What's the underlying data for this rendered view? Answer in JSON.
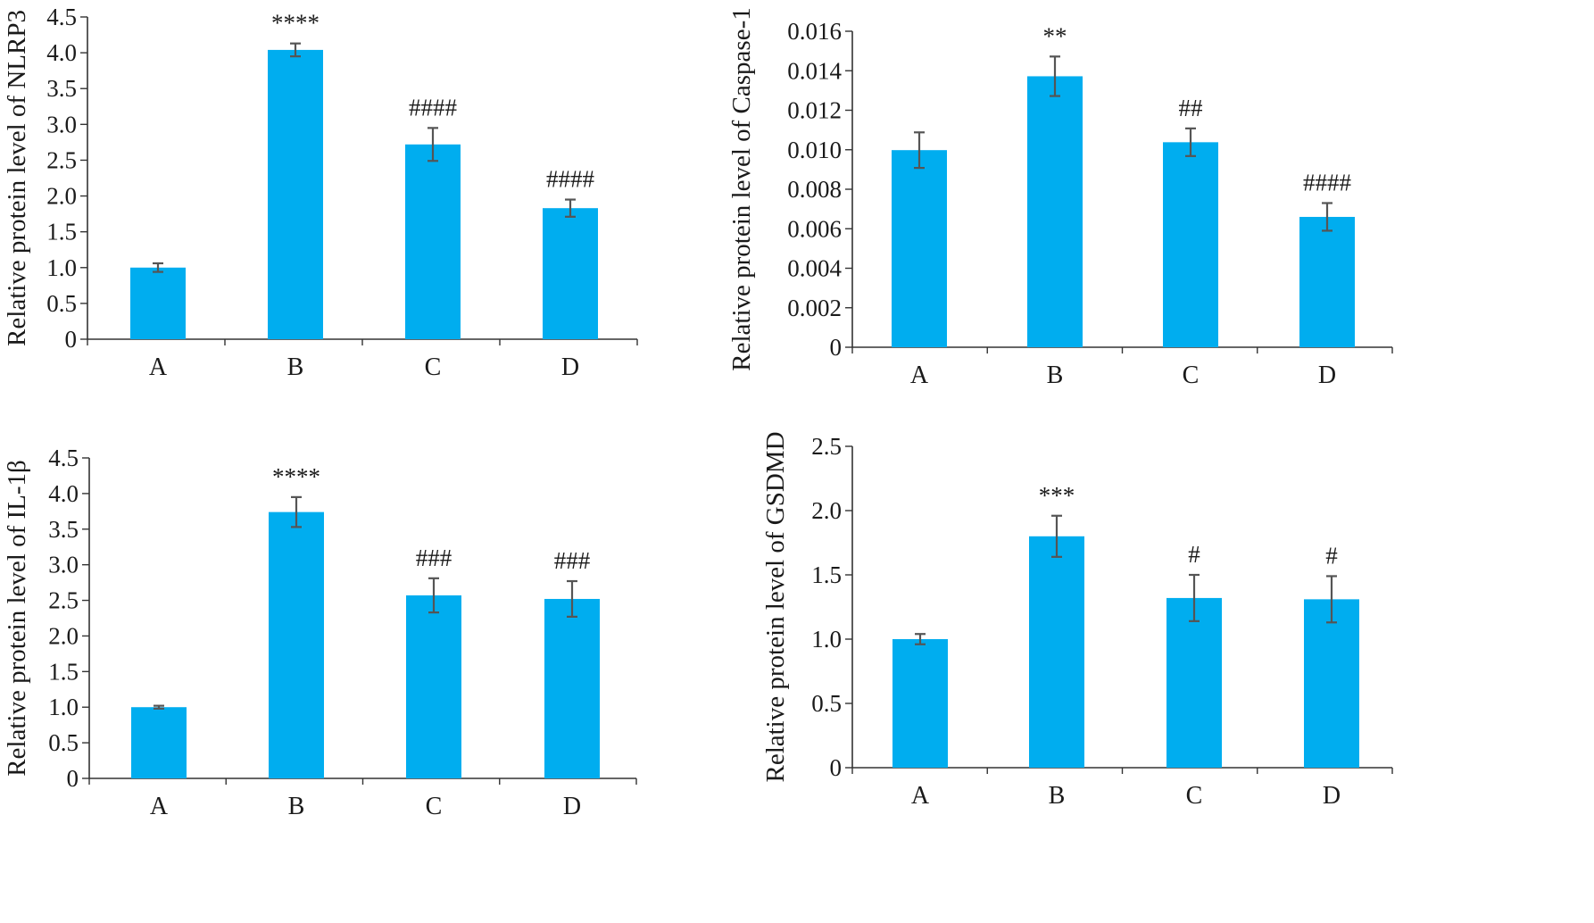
{
  "colors": {
    "bar": "#00adef",
    "axis": "#333333",
    "error_bar": "#555555",
    "text": "#1a1a1a"
  },
  "chart_data": [
    {
      "type": "bar",
      "ylabel": "Relative protein level of NLRP3",
      "categories": [
        "A",
        "B",
        "C",
        "D"
      ],
      "values": [
        1.0,
        4.04,
        2.72,
        1.83
      ],
      "errors": [
        0.06,
        0.09,
        0.23,
        0.12
      ],
      "annotations": [
        "",
        "****",
        "####",
        "####"
      ],
      "ylim": [
        0,
        4.5
      ],
      "yticks": [
        0,
        0.5,
        1.0,
        1.5,
        2.0,
        2.5,
        3.0,
        3.5,
        4.0,
        4.5
      ],
      "ytick_labels": [
        "0",
        "0.5",
        "1.0",
        "1.5",
        "2.0",
        "2.5",
        "3.0",
        "3.5",
        "4.0",
        "4.5"
      ]
    },
    {
      "type": "bar",
      "ylabel": "Relative protein level of Caspase-1",
      "categories": [
        "A",
        "B",
        "C",
        "D"
      ],
      "values": [
        0.00998,
        0.01372,
        0.01038,
        0.0066
      ],
      "errors": [
        0.0009,
        0.001,
        0.0007,
        0.0007
      ],
      "annotations": [
        "",
        "**",
        "##",
        "####"
      ],
      "ylim": [
        0,
        0.016
      ],
      "yticks": [
        0,
        0.002,
        0.004,
        0.006,
        0.008,
        0.01,
        0.012,
        0.014,
        0.016
      ],
      "ytick_labels": [
        "0",
        "0.002",
        "0.004",
        "0.006",
        "0.008",
        "0.010",
        "0.012",
        "0.014",
        "0.016"
      ]
    },
    {
      "type": "bar",
      "ylabel": "Relative protein level of IL-1β",
      "categories": [
        "A",
        "B",
        "C",
        "D"
      ],
      "values": [
        1.0,
        3.74,
        2.57,
        2.52
      ],
      "errors": [
        0.02,
        0.21,
        0.24,
        0.25
      ],
      "annotations": [
        "",
        "****",
        "###",
        "###"
      ],
      "ylim": [
        0,
        4.5
      ],
      "yticks": [
        0,
        0.5,
        1.0,
        1.5,
        2.0,
        2.5,
        3.0,
        3.5,
        4.0,
        4.5
      ],
      "ytick_labels": [
        "0",
        "0.5",
        "1.0",
        "1.5",
        "2.0",
        "2.5",
        "3.0",
        "3.5",
        "4.0",
        "4.5"
      ]
    },
    {
      "type": "bar",
      "ylabel": "Relative protein level of GSDMD",
      "categories": [
        "A",
        "B",
        "C",
        "D"
      ],
      "values": [
        1.0,
        1.8,
        1.32,
        1.31
      ],
      "errors": [
        0.04,
        0.16,
        0.18,
        0.18
      ],
      "annotations": [
        "",
        "***",
        "#",
        "#"
      ],
      "ylim": [
        0,
        2.5
      ],
      "yticks": [
        0,
        0.5,
        1.0,
        1.5,
        2.0,
        2.5
      ],
      "ytick_labels": [
        "0",
        "0.5",
        "1.0",
        "1.5",
        "2.0",
        "2.5"
      ]
    }
  ]
}
